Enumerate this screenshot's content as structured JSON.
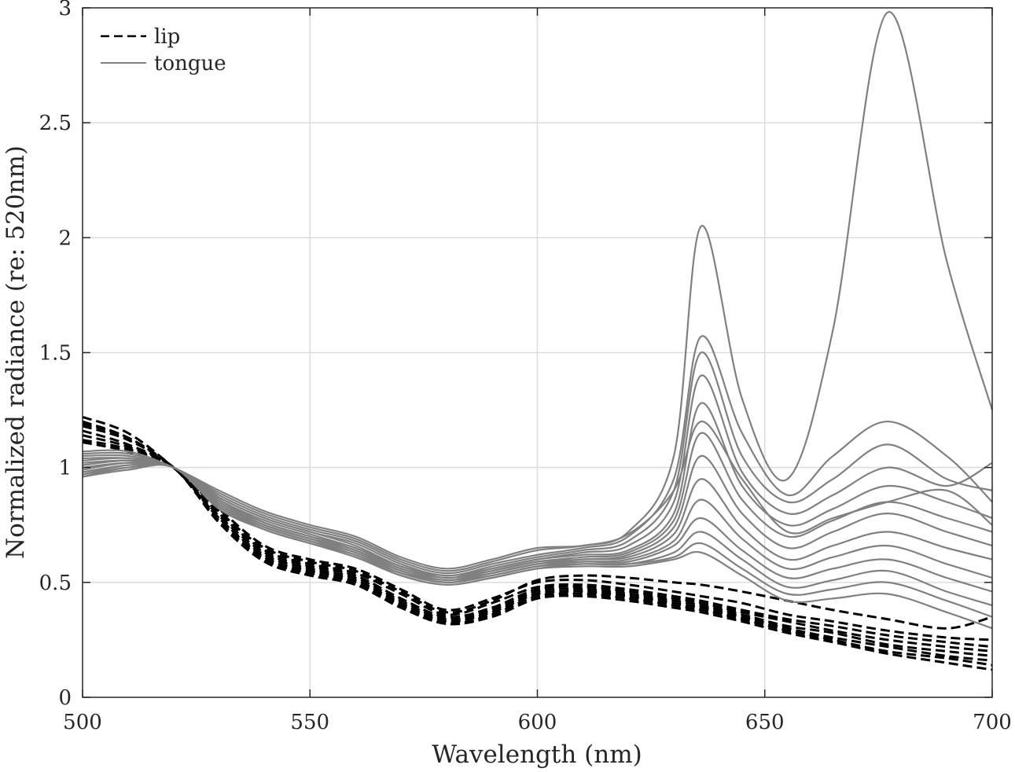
{
  "chart_data": {
    "type": "line",
    "xlabel": "Wavelength (nm)",
    "ylabel": "Normalized radiance (re: 520nm)",
    "xlim": [
      500,
      700
    ],
    "ylim": [
      0,
      3
    ],
    "xticks": [
      500,
      550,
      600,
      650,
      700
    ],
    "yticks": [
      0,
      0.5,
      1,
      1.5,
      2,
      2.5,
      3
    ],
    "ytick_labels": [
      "0",
      "0.5",
      "1",
      "1.5",
      "2",
      "2.5",
      "3"
    ],
    "grid": true,
    "legend_placement": "top-left",
    "colors": {
      "lip": "#000000",
      "tongue": "#808080",
      "grid": "#dcdcdc",
      "axis": "#262626"
    },
    "x_knots": [
      500,
      510,
      520,
      530,
      540,
      550,
      560,
      570,
      580,
      590,
      600,
      610,
      620,
      630,
      636,
      645,
      655,
      665,
      677,
      690,
      700
    ],
    "series": [
      {
        "name": "lip",
        "style": "dashed",
        "curves": [
          {
            "y": [
              1.22,
              1.15,
              1.0,
              0.82,
              0.66,
              0.6,
              0.56,
              0.47,
              0.38,
              0.43,
              0.5,
              0.51,
              0.49,
              0.46,
              0.44,
              0.41,
              0.36,
              0.33,
              0.29,
              0.26,
              0.25
            ]
          },
          {
            "y": [
              1.2,
              1.13,
              1.0,
              0.8,
              0.64,
              0.58,
              0.54,
              0.45,
              0.36,
              0.41,
              0.48,
              0.49,
              0.47,
              0.44,
              0.42,
              0.38,
              0.34,
              0.31,
              0.27,
              0.24,
              0.22
            ]
          },
          {
            "y": [
              1.18,
              1.12,
              1.0,
              0.79,
              0.63,
              0.57,
              0.53,
              0.43,
              0.35,
              0.39,
              0.47,
              0.48,
              0.46,
              0.43,
              0.41,
              0.37,
              0.33,
              0.29,
              0.25,
              0.22,
              0.2
            ]
          },
          {
            "y": [
              1.16,
              1.1,
              1.0,
              0.78,
              0.62,
              0.56,
              0.52,
              0.42,
              0.34,
              0.38,
              0.46,
              0.47,
              0.45,
              0.42,
              0.4,
              0.36,
              0.31,
              0.28,
              0.23,
              0.2,
              0.18
            ]
          },
          {
            "y": [
              1.14,
              1.09,
              1.0,
              0.78,
              0.61,
              0.55,
              0.51,
              0.41,
              0.33,
              0.37,
              0.45,
              0.46,
              0.44,
              0.41,
              0.39,
              0.35,
              0.3,
              0.26,
              0.22,
              0.18,
              0.16
            ]
          },
          {
            "y": [
              1.12,
              1.08,
              1.0,
              0.77,
              0.6,
              0.54,
              0.5,
              0.4,
              0.32,
              0.36,
              0.44,
              0.45,
              0.43,
              0.4,
              0.38,
              0.34,
              0.29,
              0.25,
              0.2,
              0.17,
              0.14
            ]
          },
          {
            "y": [
              1.11,
              1.07,
              1.0,
              0.76,
              0.59,
              0.53,
              0.49,
              0.39,
              0.32,
              0.35,
              0.43,
              0.44,
              0.42,
              0.39,
              0.37,
              0.33,
              0.28,
              0.24,
              0.19,
              0.15,
              0.12
            ]
          },
          {
            "y": [
              1.19,
              1.13,
              1.0,
              0.81,
              0.65,
              0.59,
              0.55,
              0.46,
              0.37,
              0.42,
              0.51,
              0.53,
              0.52,
              0.5,
              0.49,
              0.46,
              0.42,
              0.38,
              0.34,
              0.3,
              0.35
            ]
          }
        ]
      },
      {
        "name": "tongue",
        "style": "solid",
        "curves": [
          {
            "y": [
              1.06,
              1.06,
              1.0,
              0.89,
              0.8,
              0.74,
              0.69,
              0.6,
              0.55,
              0.59,
              0.64,
              0.66,
              0.72,
              1.05,
              2.05,
              1.3,
              0.95,
              1.6,
              2.98,
              1.9,
              1.25
            ]
          },
          {
            "y": [
              1.05,
              1.05,
              1.0,
              0.88,
              0.79,
              0.73,
              0.68,
              0.59,
              0.54,
              0.58,
              0.62,
              0.65,
              0.7,
              0.95,
              1.57,
              1.15,
              0.88,
              1.05,
              1.2,
              1.05,
              0.85
            ]
          },
          {
            "y": [
              1.04,
              1.04,
              1.0,
              0.87,
              0.78,
              0.72,
              0.67,
              0.58,
              0.53,
              0.57,
              0.61,
              0.64,
              0.68,
              0.9,
              1.5,
              1.05,
              0.85,
              0.95,
              1.1,
              0.95,
              0.9
            ]
          },
          {
            "y": [
              1.03,
              1.04,
              1.0,
              0.87,
              0.78,
              0.72,
              0.66,
              0.57,
              0.53,
              0.56,
              0.6,
              0.63,
              0.66,
              0.85,
              1.4,
              0.98,
              0.8,
              0.88,
              1.0,
              0.92,
              1.02
            ]
          },
          {
            "y": [
              1.02,
              1.03,
              1.0,
              0.86,
              0.77,
              0.71,
              0.65,
              0.57,
              0.52,
              0.56,
              0.6,
              0.62,
              0.64,
              0.8,
              1.28,
              0.92,
              0.75,
              0.82,
              0.92,
              0.85,
              0.78
            ]
          },
          {
            "y": [
              1.01,
              1.03,
              1.0,
              0.86,
              0.76,
              0.7,
              0.65,
              0.56,
              0.52,
              0.55,
              0.59,
              0.61,
              0.63,
              0.77,
              1.15,
              0.86,
              0.7,
              0.77,
              0.85,
              0.78,
              0.72
            ]
          },
          {
            "y": [
              1.0,
              1.02,
              1.0,
              0.85,
              0.76,
              0.7,
              0.64,
              0.56,
              0.51,
              0.55,
              0.59,
              0.6,
              0.62,
              0.74,
              1.05,
              0.8,
              0.65,
              0.72,
              0.8,
              0.72,
              0.66
            ]
          },
          {
            "y": [
              0.99,
              1.02,
              1.0,
              0.85,
              0.75,
              0.69,
              0.64,
              0.55,
              0.51,
              0.54,
              0.58,
              0.6,
              0.61,
              0.71,
              0.95,
              0.74,
              0.6,
              0.66,
              0.72,
              0.65,
              0.6
            ]
          },
          {
            "y": [
              0.98,
              1.01,
              1.0,
              0.84,
              0.75,
              0.69,
              0.63,
              0.55,
              0.5,
              0.54,
              0.58,
              0.59,
              0.6,
              0.68,
              0.86,
              0.69,
              0.56,
              0.61,
              0.66,
              0.58,
              0.52
            ]
          },
          {
            "y": [
              0.97,
              1.01,
              1.0,
              0.84,
              0.74,
              0.68,
              0.63,
              0.54,
              0.5,
              0.53,
              0.57,
              0.59,
              0.59,
              0.66,
              0.78,
              0.64,
              0.52,
              0.56,
              0.6,
              0.52,
              0.46
            ]
          },
          {
            "y": [
              0.97,
              1.0,
              1.0,
              0.83,
              0.74,
              0.68,
              0.62,
              0.54,
              0.5,
              0.53,
              0.57,
              0.58,
              0.58,
              0.63,
              0.72,
              0.6,
              0.48,
              0.51,
              0.55,
              0.46,
              0.4
            ]
          },
          {
            "y": [
              0.96,
              1.0,
              1.0,
              0.83,
              0.73,
              0.67,
              0.62,
              0.53,
              0.49,
              0.52,
              0.56,
              0.58,
              0.58,
              0.61,
              0.67,
              0.56,
              0.45,
              0.47,
              0.5,
              0.42,
              0.35
            ]
          },
          {
            "y": [
              0.96,
              0.99,
              1.0,
              0.82,
              0.73,
              0.67,
              0.61,
              0.53,
              0.49,
              0.52,
              0.56,
              0.57,
              0.57,
              0.6,
              0.63,
              0.53,
              0.42,
              0.43,
              0.45,
              0.37,
              0.3
            ]
          },
          {
            "y": [
              1.07,
              1.07,
              1.0,
              0.9,
              0.81,
              0.75,
              0.7,
              0.61,
              0.56,
              0.6,
              0.65,
              0.66,
              0.71,
              0.9,
              1.2,
              0.95,
              0.72,
              0.78,
              0.85,
              0.9,
              0.75
            ]
          }
        ]
      }
    ]
  }
}
